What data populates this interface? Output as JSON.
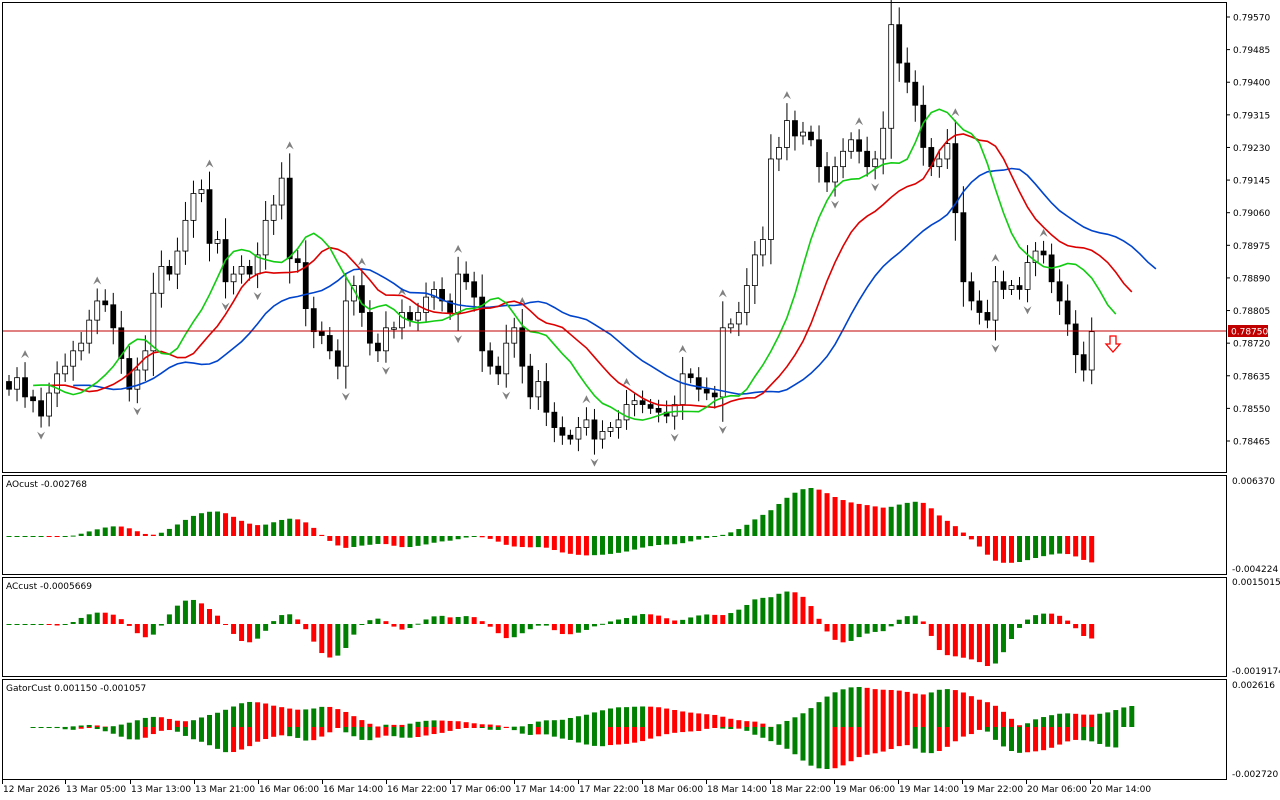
{
  "symbol_note": "",
  "colors": {
    "background": "#ffffff",
    "grid": "#000000",
    "bull_candle": "#ffffff",
    "bear_candle": "#000000",
    "jaw": "#0044cc",
    "teeth": "#dd0000",
    "lips": "#11cc11",
    "hist_up": "#008000",
    "hist_down": "#ff0000",
    "price_line": "#c00000",
    "fractal": "#808080"
  },
  "price_axis": {
    "labels": [
      "0.79570",
      "0.79485",
      "0.79400",
      "0.79315",
      "0.79230",
      "0.79145",
      "0.79060",
      "0.78975",
      "0.78890",
      "0.78805",
      "0.78720",
      "0.78635",
      "0.78550",
      "0.78465"
    ],
    "current_price": "0.78750"
  },
  "indicators": {
    "ao": {
      "label": "AOcust -0.002768",
      "max_label": "0.006370",
      "min_label": "-0.004224"
    },
    "ac": {
      "label": "ACcust -0.0005669",
      "max_label": "0.0015015",
      "min_label": "-0.0019174"
    },
    "gator": {
      "label": "GatorCust 0.001150 -0.001057",
      "max_label": "0.002616",
      "min_label": "-0.002720"
    }
  },
  "time_axis": {
    "labels": [
      "12 Mar 2026",
      "13 Mar 05:00",
      "13 Mar 13:00",
      "13 Mar 21:00",
      "16 Mar 06:00",
      "16 Mar 14:00",
      "16 Mar 22:00",
      "17 Mar 06:00",
      "17 Mar 14:00",
      "17 Mar 22:00",
      "18 Mar 06:00",
      "18 Mar 14:00",
      "18 Mar 22:00",
      "19 Mar 06:00",
      "19 Mar 14:00",
      "19 Mar 22:00",
      "20 Mar 06:00",
      "20 Mar 14:00"
    ]
  },
  "signal": {
    "type": "sell-arrow",
    "icon": "down-arrow-icon"
  },
  "chart_data": {
    "type": "candlestick",
    "title": "",
    "ylim": [
      0.7843,
      0.7959
    ],
    "closes": [
      0.786,
      0.7863,
      0.7858,
      0.7857,
      0.7853,
      0.7859,
      0.7864,
      0.7866,
      0.787,
      0.7872,
      0.7878,
      0.7883,
      0.7882,
      0.7876,
      0.7868,
      0.786,
      0.7865,
      0.787,
      0.7885,
      0.7892,
      0.789,
      0.7896,
      0.7904,
      0.7911,
      0.7912,
      0.7898,
      0.7899,
      0.7888,
      0.789,
      0.7892,
      0.789,
      0.7895,
      0.7904,
      0.7908,
      0.7915,
      0.7894,
      0.7893,
      0.7881,
      0.7875,
      0.7874,
      0.787,
      0.7866,
      0.7883,
      0.7887,
      0.788,
      0.7872,
      0.787,
      0.7876,
      0.7876,
      0.788,
      0.7878,
      0.788,
      0.7884,
      0.7886,
      0.7883,
      0.788,
      0.789,
      0.7888,
      0.7884,
      0.787,
      0.7866,
      0.7864,
      0.7872,
      0.7876,
      0.7866,
      0.7858,
      0.7862,
      0.7854,
      0.785,
      0.7848,
      0.7847,
      0.785,
      0.7852,
      0.7847,
      0.7849,
      0.785,
      0.7852,
      0.7856,
      0.7857,
      0.7856,
      0.7855,
      0.7854,
      0.7853,
      0.7856,
      0.7864,
      0.7863,
      0.786,
      0.7859,
      0.7858,
      0.7876,
      0.7877,
      0.788,
      0.7887,
      0.7895,
      0.7899,
      0.792,
      0.7923,
      0.793,
      0.7926,
      0.7927,
      0.7925,
      0.7918,
      0.7914,
      0.7918,
      0.7922,
      0.7925,
      0.7922,
      0.7918,
      0.792,
      0.7928,
      0.7955,
      0.7945,
      0.794,
      0.7934,
      0.7923,
      0.7918,
      0.792,
      0.7924,
      0.7906,
      0.7888,
      0.7883,
      0.788,
      0.7878,
      0.7888,
      0.7886,
      0.7887,
      0.7886,
      0.7893,
      0.7896,
      0.7895,
      0.7888,
      0.7883,
      0.7877,
      0.7869,
      0.7865,
      0.7875
    ]
  }
}
